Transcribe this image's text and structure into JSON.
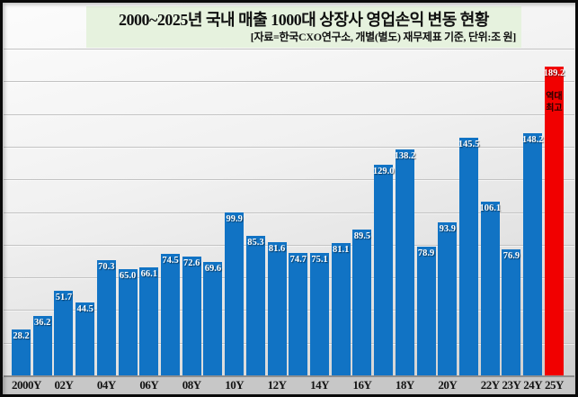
{
  "header": {
    "title": "2000~2025년 국내 매출 1000대 상장사 영업손익 변동 현황",
    "subtitle": "[자료=한국CXO연구소, 개별(별도) 재무제표 기준, 단위:조 원]"
  },
  "chart_data": {
    "type": "bar",
    "title": "2000~2025년 국내 매출 1000대 상장사 영업손익 변동 현황",
    "source_note": "자료=한국CXO연구소, 개별(별도) 재무제표 기준",
    "unit": "조 원",
    "x": [
      2000,
      2001,
      2002,
      2003,
      2004,
      2005,
      2006,
      2007,
      2008,
      2009,
      2010,
      2011,
      2012,
      2013,
      2014,
      2015,
      2016,
      2017,
      2018,
      2019,
      2020,
      2021,
      2022,
      2023,
      2024,
      2025
    ],
    "values": [
      28.2,
      36.2,
      51.7,
      44.5,
      70.3,
      65.0,
      66.1,
      74.5,
      72.6,
      69.6,
      99.9,
      85.3,
      81.6,
      74.7,
      75.1,
      81.1,
      89.5,
      129.0,
      138.2,
      78.9,
      93.9,
      145.5,
      106.1,
      76.9,
      148.2,
      189.2
    ],
    "ticks": [
      {
        "year": 2000,
        "label": "2000Y"
      },
      {
        "year": 2002,
        "label": "02Y"
      },
      {
        "year": 2004,
        "label": "04Y"
      },
      {
        "year": 2006,
        "label": "06Y"
      },
      {
        "year": 2008,
        "label": "08Y"
      },
      {
        "year": 2010,
        "label": "10Y"
      },
      {
        "year": 2012,
        "label": "12Y"
      },
      {
        "year": 2014,
        "label": "14Y"
      },
      {
        "year": 2016,
        "label": "16Y"
      },
      {
        "year": 2018,
        "label": "18Y"
      },
      {
        "year": 2020,
        "label": "20Y"
      },
      {
        "year": 2022,
        "label": "22Y"
      },
      {
        "year": 2023,
        "label": "23Y"
      },
      {
        "year": 2024,
        "label": "24Y"
      },
      {
        "year": 2025,
        "label": "25Y"
      }
    ],
    "ylim": [
      0,
      200
    ],
    "gridline_interval": 20,
    "grid": true,
    "legend": false,
    "bar_color": "#1173c4",
    "highlight": {
      "year": 2025,
      "value": 189.2,
      "color": "#f10000",
      "note_lines": [
        "역대",
        "최고"
      ]
    }
  }
}
